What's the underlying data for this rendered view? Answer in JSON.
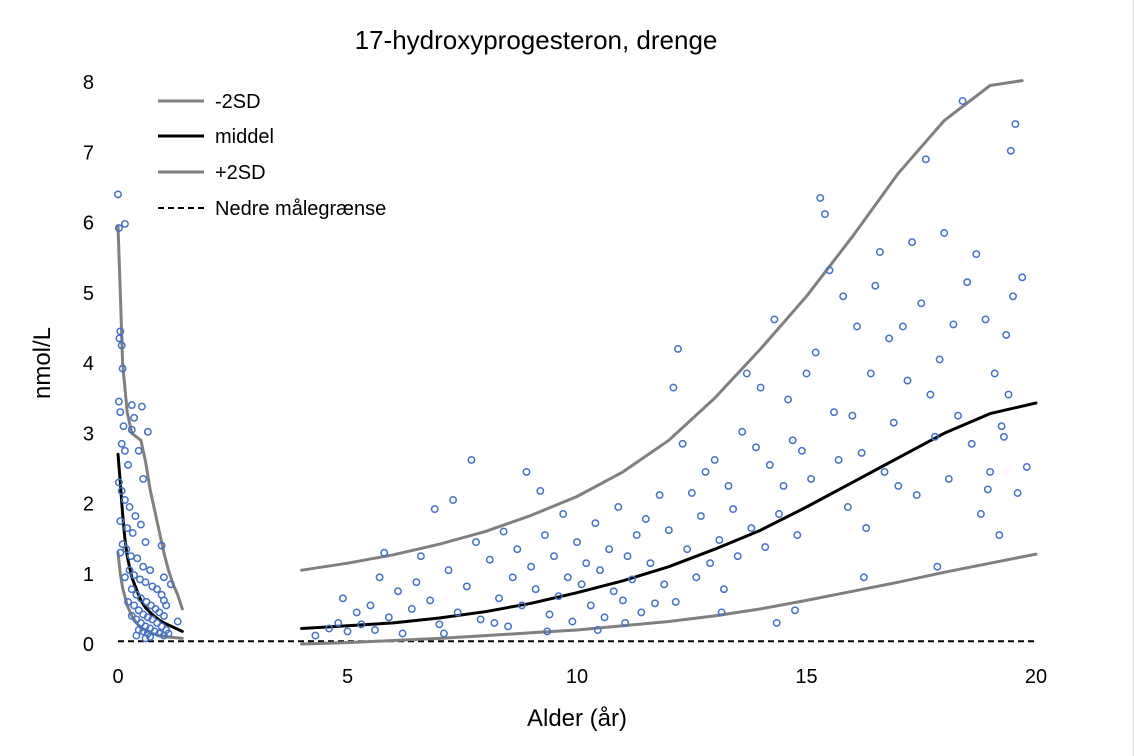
{
  "chart_data": {
    "type": "scatter",
    "title": "17-hydroxyprogesteron,  drenge",
    "xlabel": "Alder (år)",
    "ylabel": "nmol/L",
    "xlim": [
      0,
      20
    ],
    "ylim": [
      0,
      8
    ],
    "x_ticks": [
      0,
      5,
      10,
      15,
      20
    ],
    "y_ticks": [
      0,
      1,
      2,
      3,
      4,
      5,
      6,
      7,
      8
    ],
    "grid": false,
    "legend_position": "top-left",
    "legend": [
      {
        "label": "-2SD",
        "style": "gray-solid"
      },
      {
        "label": "middel",
        "style": "black-solid"
      },
      {
        "label": "+2SD",
        "style": "gray-solid"
      },
      {
        "label": "Nedre målegrænse",
        "style": "black-dashed"
      }
    ],
    "colors": {
      "points": "#4472C4",
      "sd_lines": "#808080",
      "mean_line": "#000000",
      "limit_line": "#000000"
    },
    "lower_detection_limit": 0.04,
    "series": [
      {
        "name": "+2SD infant",
        "x": [
          0.0,
          0.05,
          0.1,
          0.2,
          0.3,
          0.4,
          0.5,
          0.6,
          0.7,
          0.8,
          0.9,
          1.0,
          1.1,
          1.2,
          1.3,
          1.4
        ],
        "values": [
          5.95,
          5.0,
          4.0,
          3.3,
          3.0,
          2.95,
          2.9,
          2.6,
          2.2,
          1.9,
          1.6,
          1.3,
          1.05,
          0.85,
          0.7,
          0.5
        ]
      },
      {
        "name": "middel infant",
        "x": [
          0.0,
          0.05,
          0.1,
          0.15,
          0.2,
          0.3,
          0.4,
          0.5,
          0.6,
          0.7,
          0.8,
          0.9,
          1.0,
          1.1,
          1.2,
          1.3,
          1.4
        ],
        "values": [
          2.7,
          2.3,
          1.85,
          1.5,
          1.25,
          0.95,
          0.78,
          0.62,
          0.52,
          0.45,
          0.39,
          0.34,
          0.3,
          0.27,
          0.24,
          0.21,
          0.18
        ]
      },
      {
        "name": "-2SD infant",
        "x": [
          0.0,
          0.05,
          0.1,
          0.2,
          0.3,
          0.4,
          0.5,
          0.7,
          0.9,
          1.1,
          1.4
        ],
        "values": [
          1.3,
          1.0,
          0.8,
          0.55,
          0.4,
          0.3,
          0.23,
          0.16,
          0.12,
          0.1,
          0.08
        ]
      },
      {
        "name": "+2SD child",
        "x": [
          4,
          5,
          6,
          7,
          8,
          9,
          10,
          11,
          12,
          13,
          14,
          15,
          16,
          17,
          18,
          19,
          19.7
        ],
        "values": [
          1.05,
          1.15,
          1.27,
          1.42,
          1.6,
          1.83,
          2.1,
          2.45,
          2.9,
          3.5,
          4.2,
          4.95,
          5.8,
          6.7,
          7.45,
          7.95,
          8.02
        ]
      },
      {
        "name": "middel child",
        "x": [
          4,
          5,
          6,
          7,
          8,
          9,
          10,
          11,
          12,
          13,
          14,
          15,
          16,
          17,
          18,
          19,
          20
        ],
        "values": [
          0.22,
          0.26,
          0.3,
          0.37,
          0.46,
          0.58,
          0.73,
          0.9,
          1.1,
          1.35,
          1.62,
          1.95,
          2.3,
          2.65,
          3.0,
          3.28,
          3.43
        ]
      },
      {
        "name": "-2SD child",
        "x": [
          4,
          5,
          6,
          7,
          8,
          9,
          10,
          11,
          12,
          13,
          14,
          15,
          16,
          17,
          18,
          19,
          20
        ],
        "values": [
          0.0,
          0.02,
          0.05,
          0.08,
          0.12,
          0.16,
          0.2,
          0.26,
          0.32,
          0.4,
          0.5,
          0.62,
          0.75,
          0.88,
          1.02,
          1.15,
          1.28
        ]
      }
    ],
    "points": [
      [
        0.0,
        6.4
      ],
      [
        0.02,
        5.92
      ],
      [
        0.15,
        5.98
      ],
      [
        0.05,
        4.45
      ],
      [
        0.03,
        4.35
      ],
      [
        0.08,
        4.25
      ],
      [
        0.1,
        3.92
      ],
      [
        0.02,
        3.45
      ],
      [
        0.05,
        3.3
      ],
      [
        0.12,
        3.1
      ],
      [
        0.3,
        3.05
      ],
      [
        0.3,
        3.4
      ],
      [
        0.52,
        3.38
      ],
      [
        0.65,
        3.02
      ],
      [
        0.35,
        3.22
      ],
      [
        0.08,
        2.85
      ],
      [
        0.15,
        2.75
      ],
      [
        0.22,
        2.55
      ],
      [
        0.45,
        2.75
      ],
      [
        0.55,
        2.35
      ],
      [
        0.02,
        2.3
      ],
      [
        0.08,
        2.18
      ],
      [
        0.15,
        2.05
      ],
      [
        0.25,
        1.95
      ],
      [
        0.38,
        1.82
      ],
      [
        0.05,
        1.75
      ],
      [
        0.2,
        1.65
      ],
      [
        0.32,
        1.58
      ],
      [
        0.5,
        1.7
      ],
      [
        0.6,
        1.45
      ],
      [
        0.1,
        1.42
      ],
      [
        0.18,
        1.35
      ],
      [
        0.28,
        1.25
      ],
      [
        0.42,
        1.22
      ],
      [
        0.55,
        1.1
      ],
      [
        0.7,
        1.05
      ],
      [
        0.05,
        1.3
      ],
      [
        0.25,
        1.05
      ],
      [
        0.35,
        0.98
      ],
      [
        0.48,
        0.92
      ],
      [
        0.6,
        0.88
      ],
      [
        0.75,
        0.82
      ],
      [
        0.85,
        0.78
      ],
      [
        0.95,
        0.7
      ],
      [
        1.0,
        0.62
      ],
      [
        0.15,
        0.95
      ],
      [
        0.3,
        0.78
      ],
      [
        0.4,
        0.7
      ],
      [
        0.5,
        0.65
      ],
      [
        0.62,
        0.6
      ],
      [
        0.72,
        0.55
      ],
      [
        0.82,
        0.5
      ],
      [
        0.9,
        0.45
      ],
      [
        1.0,
        0.4
      ],
      [
        1.05,
        0.55
      ],
      [
        1.0,
        0.95
      ],
      [
        1.15,
        0.85
      ],
      [
        0.95,
        1.4
      ],
      [
        0.22,
        0.6
      ],
      [
        0.35,
        0.55
      ],
      [
        0.45,
        0.48
      ],
      [
        0.55,
        0.42
      ],
      [
        0.65,
        0.38
      ],
      [
        0.75,
        0.35
      ],
      [
        0.85,
        0.3
      ],
      [
        0.95,
        0.25
      ],
      [
        1.05,
        0.2
      ],
      [
        1.1,
        0.15
      ],
      [
        0.3,
        0.4
      ],
      [
        0.4,
        0.35
      ],
      [
        0.5,
        0.3
      ],
      [
        0.6,
        0.25
      ],
      [
        0.7,
        0.22
      ],
      [
        0.8,
        0.18
      ],
      [
        0.9,
        0.15
      ],
      [
        1.0,
        0.12
      ],
      [
        0.45,
        0.2
      ],
      [
        0.55,
        0.18
      ],
      [
        0.65,
        0.15
      ],
      [
        1.3,
        0.32
      ],
      [
        0.6,
        0.08
      ],
      [
        0.4,
        0.12
      ],
      [
        0.7,
        0.1
      ],
      [
        4.3,
        0.12
      ],
      [
        4.6,
        0.22
      ],
      [
        4.8,
        0.3
      ],
      [
        4.9,
        0.65
      ],
      [
        5.0,
        0.18
      ],
      [
        5.2,
        0.45
      ],
      [
        5.3,
        0.28
      ],
      [
        5.5,
        0.55
      ],
      [
        5.6,
        0.2
      ],
      [
        5.7,
        0.95
      ],
      [
        5.8,
        1.3
      ],
      [
        5.9,
        0.38
      ],
      [
        6.1,
        0.75
      ],
      [
        6.2,
        0.15
      ],
      [
        6.4,
        0.5
      ],
      [
        6.5,
        0.88
      ],
      [
        6.6,
        1.25
      ],
      [
        6.8,
        0.62
      ],
      [
        6.9,
        1.92
      ],
      [
        7.0,
        0.28
      ],
      [
        7.2,
        1.05
      ],
      [
        7.3,
        2.05
      ],
      [
        7.4,
        0.45
      ],
      [
        7.6,
        0.82
      ],
      [
        7.7,
        2.62
      ],
      [
        7.8,
        1.45
      ],
      [
        7.9,
        0.35
      ],
      [
        8.1,
        1.2
      ],
      [
        8.3,
        0.65
      ],
      [
        8.4,
        1.6
      ],
      [
        8.5,
        0.25
      ],
      [
        8.6,
        0.95
      ],
      [
        8.7,
        1.35
      ],
      [
        8.8,
        0.55
      ],
      [
        8.9,
        2.45
      ],
      [
        9.0,
        1.1
      ],
      [
        9.1,
        0.78
      ],
      [
        9.2,
        2.18
      ],
      [
        9.3,
        1.55
      ],
      [
        9.4,
        0.42
      ],
      [
        9.5,
        1.25
      ],
      [
        9.6,
        0.68
      ],
      [
        9.7,
        1.85
      ],
      [
        9.8,
        0.95
      ],
      [
        9.9,
        0.32
      ],
      [
        10.0,
        1.45
      ],
      [
        10.1,
        0.85
      ],
      [
        10.2,
        1.15
      ],
      [
        10.3,
        0.55
      ],
      [
        10.4,
        1.72
      ],
      [
        10.5,
        1.05
      ],
      [
        10.6,
        0.38
      ],
      [
        10.7,
        1.35
      ],
      [
        10.8,
        0.75
      ],
      [
        10.9,
        1.95
      ],
      [
        11.0,
        0.62
      ],
      [
        11.1,
        1.25
      ],
      [
        11.2,
        0.92
      ],
      [
        11.3,
        1.55
      ],
      [
        11.4,
        0.45
      ],
      [
        11.5,
        1.78
      ],
      [
        11.6,
        1.15
      ],
      [
        11.7,
        0.58
      ],
      [
        11.8,
        2.12
      ],
      [
        11.9,
        0.85
      ],
      [
        12.0,
        1.62
      ],
      [
        12.1,
        3.65
      ],
      [
        12.2,
        4.2
      ],
      [
        12.3,
        2.85
      ],
      [
        12.4,
        1.35
      ],
      [
        12.5,
        2.15
      ],
      [
        12.6,
        0.95
      ],
      [
        12.7,
        1.82
      ],
      [
        12.8,
        2.45
      ],
      [
        12.9,
        1.15
      ],
      [
        13.0,
        2.62
      ],
      [
        13.1,
        1.48
      ],
      [
        13.2,
        0.78
      ],
      [
        13.3,
        2.25
      ],
      [
        13.4,
        1.92
      ],
      [
        13.5,
        1.25
      ],
      [
        13.6,
        3.02
      ],
      [
        13.7,
        3.85
      ],
      [
        13.8,
        1.65
      ],
      [
        13.9,
        2.8
      ],
      [
        14.0,
        3.65
      ],
      [
        14.1,
        1.38
      ],
      [
        14.2,
        2.55
      ],
      [
        14.3,
        4.62
      ],
      [
        14.4,
        1.85
      ],
      [
        14.5,
        2.25
      ],
      [
        14.6,
        3.48
      ],
      [
        14.7,
        2.9
      ],
      [
        14.8,
        1.55
      ],
      [
        14.9,
        2.75
      ],
      [
        15.0,
        3.85
      ],
      [
        15.1,
        2.35
      ],
      [
        15.2,
        4.15
      ],
      [
        15.3,
        6.35
      ],
      [
        15.4,
        6.12
      ],
      [
        15.5,
        5.32
      ],
      [
        15.6,
        3.3
      ],
      [
        15.7,
        2.62
      ],
      [
        15.8,
        4.95
      ],
      [
        15.9,
        1.95
      ],
      [
        16.0,
        3.25
      ],
      [
        16.1,
        4.52
      ],
      [
        16.2,
        2.72
      ],
      [
        16.3,
        1.65
      ],
      [
        16.4,
        3.85
      ],
      [
        16.5,
        5.1
      ],
      [
        16.6,
        5.58
      ],
      [
        16.7,
        2.45
      ],
      [
        16.8,
        4.35
      ],
      [
        16.9,
        3.15
      ],
      [
        17.0,
        2.25
      ],
      [
        17.1,
        4.52
      ],
      [
        17.2,
        3.75
      ],
      [
        17.3,
        5.72
      ],
      [
        17.4,
        2.12
      ],
      [
        17.5,
        4.85
      ],
      [
        17.6,
        6.9
      ],
      [
        17.7,
        3.55
      ],
      [
        17.8,
        2.95
      ],
      [
        17.9,
        4.05
      ],
      [
        18.0,
        5.85
      ],
      [
        18.1,
        2.35
      ],
      [
        18.2,
        4.55
      ],
      [
        18.3,
        3.25
      ],
      [
        18.4,
        7.73
      ],
      [
        18.5,
        5.15
      ],
      [
        18.6,
        2.85
      ],
      [
        18.7,
        5.55
      ],
      [
        18.8,
        1.85
      ],
      [
        18.9,
        4.62
      ],
      [
        19.0,
        2.45
      ],
      [
        19.1,
        3.85
      ],
      [
        19.2,
        1.55
      ],
      [
        19.3,
        2.95
      ],
      [
        19.4,
        3.55
      ],
      [
        19.45,
        7.02
      ],
      [
        19.5,
        4.95
      ],
      [
        19.55,
        7.4
      ],
      [
        19.6,
        2.15
      ],
      [
        19.7,
        5.22
      ],
      [
        19.8,
        2.52
      ],
      [
        19.35,
        4.4
      ],
      [
        19.25,
        3.1
      ],
      [
        18.95,
        2.2
      ],
      [
        17.85,
        1.1
      ],
      [
        16.25,
        0.95
      ],
      [
        14.75,
        0.48
      ],
      [
        14.35,
        0.3
      ],
      [
        13.15,
        0.45
      ],
      [
        12.15,
        0.6
      ],
      [
        11.05,
        0.3
      ],
      [
        10.45,
        0.2
      ],
      [
        9.35,
        0.18
      ],
      [
        8.2,
        0.3
      ],
      [
        7.1,
        0.15
      ]
    ]
  }
}
